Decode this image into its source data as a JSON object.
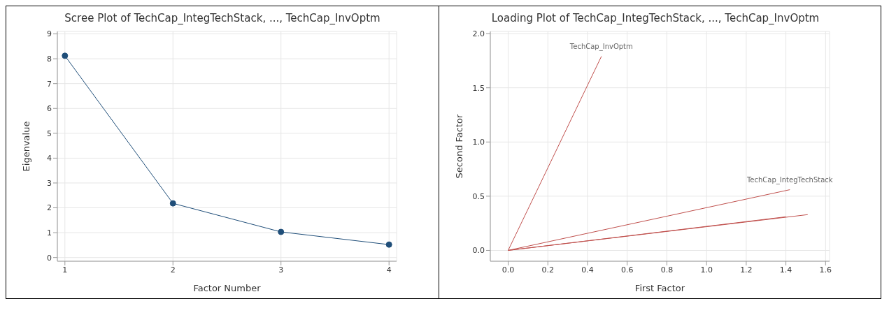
{
  "chart_data": [
    {
      "type": "line",
      "title": "Scree Plot of TechCap_IntegTechStack, ..., TechCap_InvOptm",
      "xlabel": "Factor Number",
      "ylabel": "Eigenvalue",
      "x": [
        1,
        2,
        3,
        4
      ],
      "series": [
        {
          "color": "#1f4e79",
          "values": [
            8.12,
            2.18,
            1.03,
            0.52
          ]
        }
      ],
      "xlim": [
        0.93,
        4.07
      ],
      "xticks": [
        1,
        2,
        3,
        4
      ],
      "ylim": [
        -0.15,
        9.1
      ],
      "yticks": [
        0,
        1,
        2,
        3,
        4,
        5,
        6,
        7,
        8,
        9
      ],
      "grid": true,
      "marker": "circle",
      "line_style": "solid",
      "legend": false
    },
    {
      "type": "line",
      "title": "Loading Plot of TechCap_IntegTechStack, ..., TechCap_InvOptm",
      "xlabel": "First Factor",
      "ylabel": "Second Factor",
      "series": [
        {
          "name": "TechCap_InvOptm",
          "color": "#c0504d",
          "x": [
            0,
            0.47
          ],
          "values": [
            0,
            1.79
          ]
        },
        {
          "name": "TechCap_IntegTechStack",
          "color": "#c0504d",
          "x": [
            0,
            1.42
          ],
          "values": [
            0,
            0.56
          ]
        },
        {
          "color": "#c0504d",
          "x": [
            0,
            1.4
          ],
          "values": [
            0,
            0.31
          ]
        },
        {
          "color": "#c0504d",
          "x": [
            0,
            1.51
          ],
          "values": [
            0,
            0.33
          ]
        }
      ],
      "xlim": [
        -0.09,
        1.62
      ],
      "xticks": [
        {
          "value": 0,
          "label": "0.0"
        },
        0.2,
        0.4,
        0.6,
        0.8,
        {
          "value": 1,
          "label": "1.0"
        },
        1.2,
        1.4,
        1.6
      ],
      "ylim": [
        -0.1,
        2.02
      ],
      "yticks": [
        {
          "value": 0,
          "label": "0.0"
        },
        0.5,
        {
          "value": 1,
          "label": "1.0"
        },
        1.5,
        {
          "value": 2,
          "label": "2.0"
        }
      ],
      "grid": true,
      "marker": "none",
      "line_style": "solid",
      "legend": false
    }
  ]
}
